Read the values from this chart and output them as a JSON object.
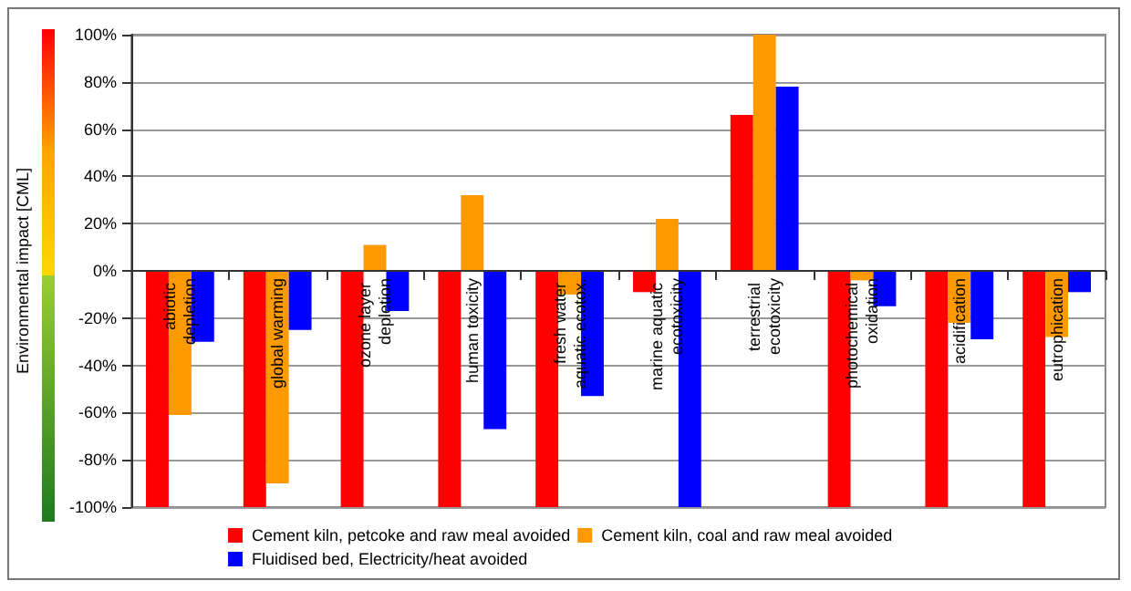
{
  "chart_data": {
    "type": "bar",
    "ylabel": "Environmental impact [CML]",
    "categories": [
      "abiotic depletion",
      "global warming",
      "ozone layer depletion",
      "human toxicity",
      "fresh water aquatic ecotox.",
      "marine aquatic ecotoxicity",
      "terrestrial ecotoxicity",
      "photochemical oxidation",
      "acidification",
      "eutrophication"
    ],
    "series": [
      {
        "name": "Cement kiln, petcoke and raw meal avoided",
        "color": "#ff0000",
        "values": [
          -100,
          -100,
          -100,
          -100,
          -100,
          -9,
          66,
          -100,
          -100,
          -100
        ]
      },
      {
        "name": "Cement kiln, coal and raw meal avoided",
        "color": "#ff9900",
        "values": [
          -61,
          -90,
          11,
          32,
          -10,
          22,
          100,
          -4,
          -22,
          -28
        ]
      },
      {
        "name": "Fluidised bed, Electricity/heat avoided",
        "color": "#0000ff",
        "values": [
          -30,
          -25,
          -17,
          -67,
          -53,
          -100,
          78,
          -15,
          -29,
          -9
        ]
      }
    ],
    "ylim": [
      -100,
      100
    ],
    "yticks": [
      {
        "value": -100,
        "label": "-100%"
      },
      {
        "value": -80,
        "label": "-80%"
      },
      {
        "value": -60,
        "label": "-60%"
      },
      {
        "value": -40,
        "label": "-40%"
      },
      {
        "value": -20,
        "label": "-20%"
      },
      {
        "value": 0,
        "label": "0%"
      },
      {
        "value": 20,
        "label": "20%"
      },
      {
        "value": 40,
        "label": "40%"
      },
      {
        "value": 60,
        "label": "60%"
      },
      {
        "value": 80,
        "label": "80%"
      },
      {
        "value": 100,
        "label": "100%"
      }
    ],
    "grid": "y",
    "legend": "bottom"
  }
}
